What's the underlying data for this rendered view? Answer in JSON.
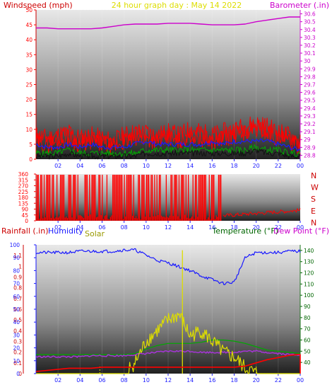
{
  "header": {
    "left_label": "Windspeed (mph)",
    "title": "24 hour graph day : May 14 2022",
    "right_label": "Barometer (.in)"
  },
  "colors": {
    "red": "#ff0000",
    "green": "#00aa00",
    "blue": "#1a1aff",
    "magenta": "#cc00cc",
    "purple": "#aa33dd",
    "yellow": "#dddd00",
    "dark": "#111111",
    "crimson": "#cc0000",
    "darkgreen": "#006600",
    "olive": "#999900"
  },
  "x_ticks": [
    "02",
    "04",
    "06",
    "08",
    "10",
    "12",
    "14",
    "16",
    "18",
    "20",
    "22",
    "00"
  ],
  "chart_data": [
    {
      "type": "line",
      "name": "wind-barometer",
      "y_left": {
        "label": "Windspeed (mph)",
        "range": [
          0,
          50
        ],
        "ticks": [
          0,
          5,
          10,
          15,
          20,
          25,
          30,
          35,
          40,
          45,
          50
        ]
      },
      "y_right": {
        "label": "Barometer (.in)",
        "range": [
          28.75,
          30.65
        ],
        "ticks": [
          "28.8",
          "28.9",
          "29",
          "29.1",
          "29.2",
          "29.3",
          "29.4",
          "29.5",
          "29.6",
          "29.7",
          "29.8",
          "29.9",
          "30",
          "30.1",
          "30.2",
          "30.3",
          "30.4",
          "30.5",
          "30.6"
        ]
      },
      "x_hours": [
        0,
        1,
        2,
        3,
        4,
        5,
        6,
        7,
        8,
        9,
        10,
        11,
        12,
        13,
        14,
        15,
        16,
        17,
        18,
        19,
        20,
        21,
        22,
        23,
        24
      ],
      "barometer": [
        30.42,
        30.42,
        30.41,
        30.41,
        30.41,
        30.41,
        30.42,
        30.44,
        30.46,
        30.47,
        30.47,
        30.47,
        30.48,
        30.48,
        30.48,
        30.47,
        30.46,
        30.46,
        30.46,
        30.47,
        30.5,
        30.52,
        30.54,
        30.56,
        30.56
      ],
      "wind_gust": [
        8,
        7,
        8,
        9,
        7,
        8,
        7,
        6,
        8,
        9,
        9,
        8,
        9,
        8,
        10,
        9,
        8,
        9,
        10,
        11,
        12,
        11,
        9,
        8,
        6
      ],
      "wind_avg": [
        5,
        4,
        4,
        5,
        4,
        5,
        4,
        4,
        4,
        5,
        6,
        5,
        5,
        5,
        5,
        5,
        6,
        5,
        6,
        6,
        6,
        6,
        5,
        4,
        3
      ],
      "wind_low": [
        2,
        2,
        2,
        3,
        2,
        2,
        2,
        2,
        2,
        2,
        3,
        3,
        3,
        3,
        3,
        3,
        3,
        3,
        3,
        3,
        4,
        3,
        3,
        2,
        2
      ]
    },
    {
      "type": "scatter",
      "name": "wind-direction",
      "y": {
        "range": [
          0,
          360
        ],
        "ticks": [
          0,
          45,
          90,
          135,
          180,
          225,
          270,
          315,
          360
        ]
      },
      "directions": [
        "N",
        "W",
        "S",
        "E",
        "N"
      ],
      "x_hours": [
        0,
        2,
        4,
        6,
        8,
        10,
        12,
        14,
        16,
        17,
        18,
        20,
        22,
        24
      ],
      "direction_deg": [
        330,
        300,
        320,
        340,
        330,
        310,
        330,
        320,
        330,
        40,
        55,
        60,
        70,
        80
      ]
    },
    {
      "type": "line",
      "name": "rain-humidity-temp",
      "labels": {
        "rainfall": "Rainfall (.in)",
        "humidity": "Humidity",
        "solar": "Solar",
        "temperature": "Temperature (°F)",
        "dewpoint": "Dew Point (°F)"
      },
      "y_left_rain": {
        "range": [
          0,
          1.2
        ],
        "ticks": [
          "0",
          "0.1",
          "0.2",
          "0.3",
          "0.4",
          "0.5",
          "0.6",
          "0.7",
          "0.8",
          "0.9",
          "1",
          "1.1"
        ]
      },
      "y_left_humidity": {
        "range": [
          0,
          100
        ],
        "ticks": [
          0,
          10,
          20,
          30,
          40,
          50,
          60,
          70,
          80,
          90,
          100
        ]
      },
      "y_right_temp": {
        "range": [
          30,
          145
        ],
        "ticks": [
          40,
          50,
          60,
          70,
          80,
          90,
          100,
          110,
          120,
          130,
          140
        ]
      },
      "x_hours": [
        0,
        1,
        2,
        3,
        4,
        5,
        6,
        7,
        8,
        9,
        10,
        11,
        12,
        13,
        14,
        15,
        16,
        17,
        18,
        19,
        20,
        21,
        22,
        23,
        24
      ],
      "humidity": [
        94,
        94,
        94,
        94,
        95,
        95,
        95,
        95,
        96,
        96,
        92,
        88,
        86,
        83,
        80,
        76,
        73,
        70,
        71,
        90,
        94,
        94,
        94,
        95,
        95
      ],
      "temperature": [
        47,
        47,
        47,
        47,
        47,
        47,
        47,
        47,
        47,
        48,
        52,
        55,
        57,
        57,
        57,
        58,
        60,
        60,
        59,
        57,
        54,
        51,
        50,
        49,
        48
      ],
      "dewpoint": [
        45,
        45,
        45,
        45,
        45,
        46,
        46,
        46,
        46,
        47,
        48,
        49,
        50,
        50,
        50,
        49,
        49,
        49,
        49,
        50,
        50,
        49,
        48,
        47,
        47
      ],
      "solar_scaled": [
        0,
        0,
        0,
        0,
        0,
        0,
        0,
        0,
        0.02,
        0.1,
        0.3,
        0.4,
        0.5,
        0.55,
        0.35,
        0.4,
        0.3,
        0.2,
        0.15,
        0.05,
        0,
        0,
        0,
        0,
        0
      ],
      "solar_spike": {
        "hour": 13.3,
        "value_scaled": 1.15
      },
      "rainfall": [
        0.02,
        0.03,
        0.04,
        0.05,
        0.05,
        0.05,
        0.06,
        0.06,
        0.06,
        0.06,
        0.06,
        0.06,
        0.06,
        0.06,
        0.06,
        0.06,
        0.06,
        0.06,
        0.06,
        0.07,
        0.1,
        0.13,
        0.15,
        0.17,
        0.18
      ]
    }
  ]
}
